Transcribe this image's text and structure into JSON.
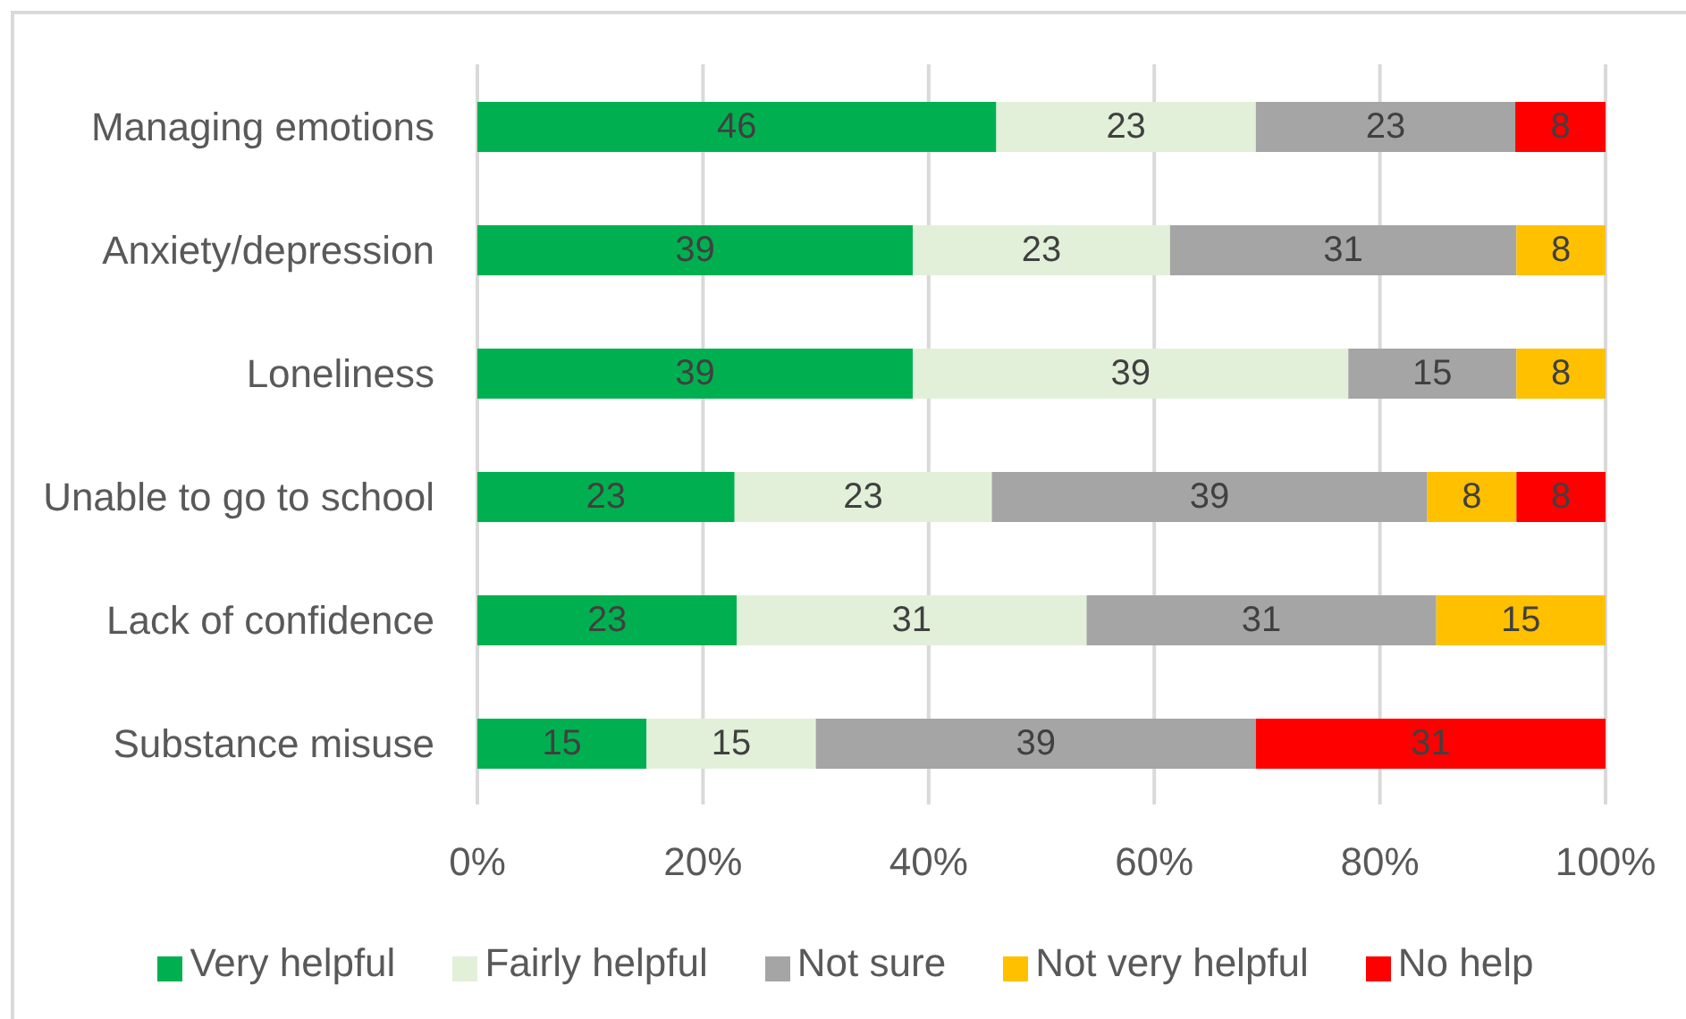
{
  "chart_data": {
    "type": "bar",
    "orientation": "horizontal",
    "stacked": true,
    "categories": [
      "Managing emotions",
      "Anxiety/depression",
      "Loneliness",
      "Unable to go to school",
      "Lack of confidence",
      "Substance misuse"
    ],
    "series": [
      {
        "name": "Very helpful",
        "color": "#00b050",
        "values": [
          46,
          38.6,
          38.6,
          22.8,
          23,
          15
        ],
        "value_labels": [
          "46",
          "39",
          "39",
          "23",
          "23",
          "15"
        ]
      },
      {
        "name": "Fairly helpful",
        "color": "#e2f0d9",
        "values": [
          23,
          22.8,
          38.6,
          22.8,
          31,
          15
        ],
        "value_labels": [
          "23",
          "23",
          "39",
          "23",
          "31",
          "15"
        ]
      },
      {
        "name": "Not sure",
        "color": "#a5a5a5",
        "values": [
          23,
          30.7,
          14.9,
          38.6,
          31,
          39
        ],
        "value_labels": [
          "23",
          "31",
          "15",
          "39",
          "31",
          "39"
        ]
      },
      {
        "name": "Not very helpful",
        "color": "#ffc000",
        "values": [
          null,
          7.9,
          7.9,
          7.9,
          15,
          null
        ],
        "value_labels": [
          null,
          "8",
          "8",
          "8",
          "15",
          null
        ]
      },
      {
        "name": "No help",
        "color": "#ff0000",
        "values": [
          8,
          null,
          null,
          7.9,
          null,
          31
        ],
        "value_labels": [
          "8",
          null,
          null,
          "8",
          null,
          "31"
        ]
      }
    ],
    "xlim": [
      0,
      100
    ],
    "xticks": [
      {
        "value": 0,
        "label": "0%"
      },
      {
        "value": 20,
        "label": "20%"
      },
      {
        "value": 40,
        "label": "40%"
      },
      {
        "value": 60,
        "label": "60%"
      },
      {
        "value": 80,
        "label": "80%"
      },
      {
        "value": 100,
        "label": "100%"
      }
    ],
    "grid": "x",
    "legend": "bottom"
  }
}
